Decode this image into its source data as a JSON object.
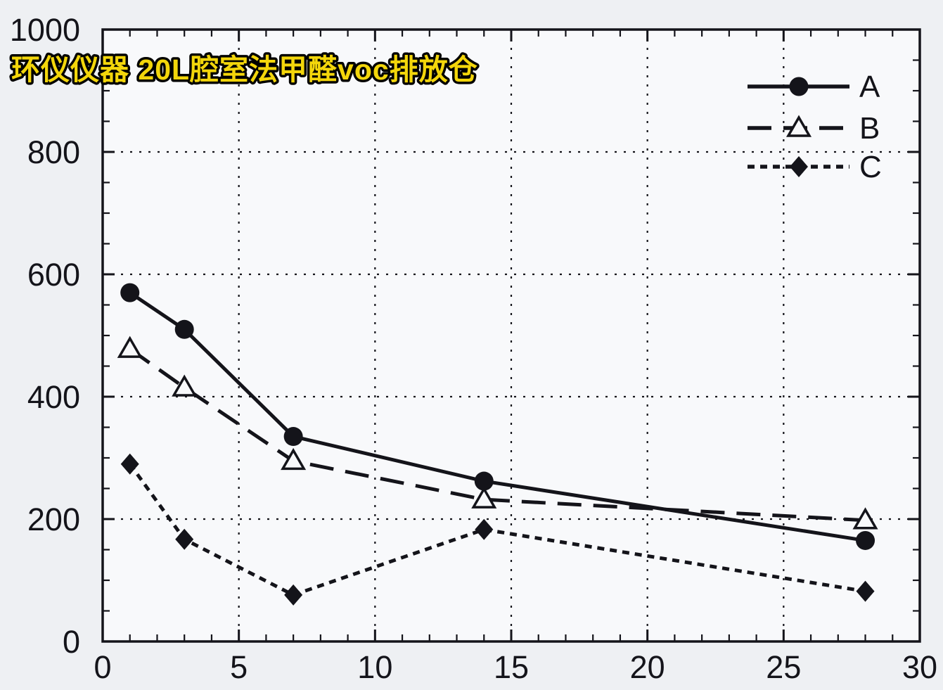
{
  "title": {
    "text": "环仪仪器 20L腔室法甲醛voc排放仓",
    "color": "#f3d60b",
    "outline_color": "#000000"
  },
  "chart_data": {
    "type": "line",
    "x": [
      1,
      3,
      7,
      14,
      28
    ],
    "series": [
      {
        "name": "A",
        "marker": "filled-circle",
        "line_style": "solid",
        "values": [
          570,
          510,
          335,
          262,
          165
        ]
      },
      {
        "name": "B",
        "marker": "open-triangle",
        "line_style": "dashed",
        "values": [
          478,
          415,
          295,
          232,
          198
        ]
      },
      {
        "name": "C",
        "marker": "filled-diamond",
        "line_style": "dotted",
        "values": [
          290,
          167,
          76,
          183,
          82
        ]
      }
    ],
    "xlim": [
      0,
      30
    ],
    "ylim": [
      0,
      1000
    ],
    "x_major_ticks": [
      0,
      5,
      10,
      15,
      20,
      25,
      30
    ],
    "x_minor_step": 1,
    "y_major_ticks": [
      0,
      200,
      400,
      600,
      800,
      1000
    ],
    "y_minor_step": 50,
    "grid": {
      "horizontal_lines": [
        200,
        400,
        600,
        800
      ],
      "vertical_lines": [
        5,
        10,
        15,
        20,
        25
      ],
      "style": "dotted"
    },
    "legend": {
      "position": "top-right",
      "entries": [
        "A",
        "B",
        "C"
      ]
    },
    "colors": {
      "line": "#14141a",
      "page_background": "#eef0f3",
      "plot_background": "#f8f9fb"
    }
  }
}
